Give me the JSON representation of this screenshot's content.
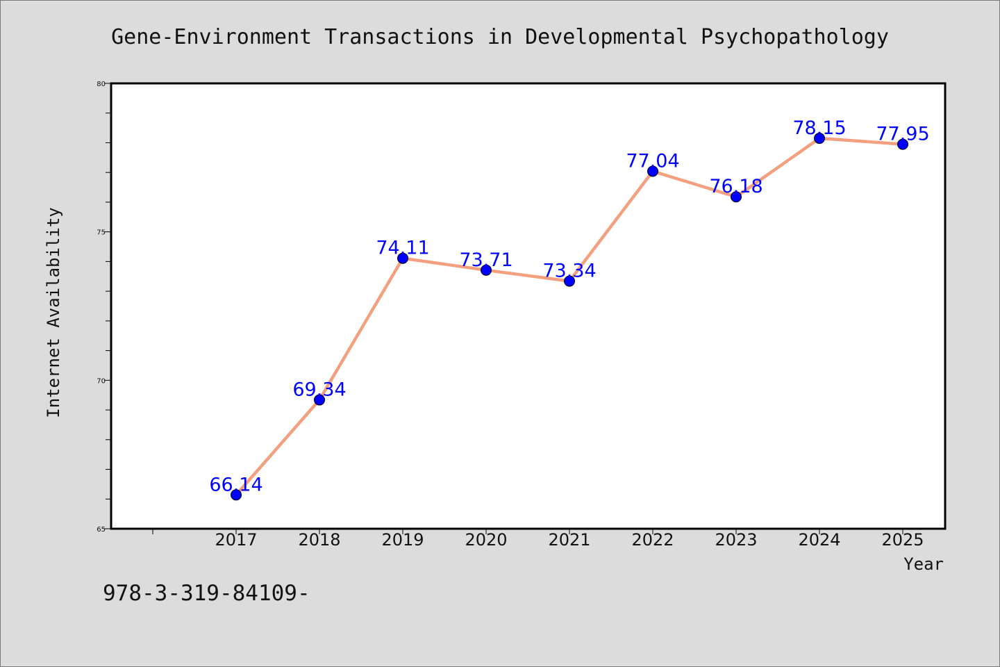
{
  "chart_data": {
    "type": "line",
    "title": "Gene-Environment Transactions in Developmental Psychopathology",
    "xlabel": "Year",
    "ylabel": "Internet Availability",
    "x": [
      "2017",
      "2018",
      "2019",
      "2020",
      "2021",
      "2022",
      "2023",
      "2024",
      "2025"
    ],
    "series": [
      {
        "values": [
          66.14,
          69.34,
          74.11,
          73.71,
          73.34,
          77.04,
          76.18,
          78.15,
          77.95
        ],
        "labels": [
          "66.14",
          "69.34",
          "74.11",
          "73.71",
          "73.34",
          "77.04",
          "76.18",
          "78.15",
          "77.95"
        ]
      }
    ],
    "ylim": [
      65,
      80
    ],
    "yticks": [
      "65",
      "70",
      "75",
      "80"
    ],
    "grid": false,
    "colors": {
      "line": "#f4a07f",
      "marker": "#0000ff",
      "data_label": "#0000ff",
      "background": "#dcdcdc",
      "plot_area": "#ffffff"
    }
  },
  "footer": {
    "isbn": "978-3-319-84109-"
  }
}
